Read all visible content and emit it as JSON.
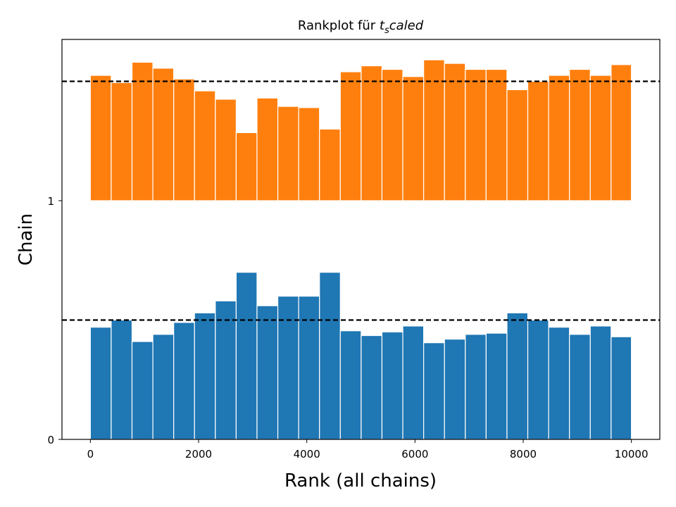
{
  "chart_data": {
    "type": "bar",
    "title": "Rankplot für ",
    "title_math": "t",
    "title_math_sub": "s",
    "title_math_rest": "caled",
    "xlabel": "Rank (all chains)",
    "ylabel": "Chain",
    "xlim": [
      -525,
      10525
    ],
    "xticks": [
      0,
      2000,
      4000,
      6000,
      8000,
      10000
    ],
    "xtick_labels": [
      "0",
      "2000",
      "4000",
      "6000",
      "8000",
      "10000"
    ],
    "yticks": [
      0,
      1
    ],
    "ytick_labels": [
      "0",
      "1"
    ],
    "bin_edges": [
      0,
      385,
      770,
      1155,
      1540,
      1925,
      2310,
      2695,
      3080,
      3465,
      3850,
      4235,
      4620,
      5005,
      5390,
      5775,
      6160,
      6545,
      6930,
      7315,
      7700,
      8085,
      8470,
      8855,
      9240,
      9625,
      10000
    ],
    "series": [
      {
        "chain": 0,
        "color": "#1f77b4",
        "counts": [
          0.47,
          0.5,
          0.41,
          0.44,
          0.49,
          0.53,
          0.58,
          0.7,
          0.56,
          0.6,
          0.6,
          0.7,
          0.455,
          0.435,
          0.45,
          0.475,
          0.405,
          0.42,
          0.44,
          0.445,
          0.53,
          0.5,
          0.47,
          0.44,
          0.475,
          0.43
        ]
      },
      {
        "chain": 1,
        "color": "#ff7f0e",
        "counts": [
          1.525,
          1.495,
          1.58,
          1.555,
          1.51,
          1.46,
          1.425,
          1.285,
          1.43,
          1.395,
          1.39,
          1.3,
          1.54,
          1.565,
          1.55,
          1.52,
          1.59,
          1.575,
          1.55,
          1.55,
          1.465,
          1.5,
          1.525,
          1.55,
          1.525,
          1.57
        ]
      }
    ],
    "reference_lines": [
      0.5,
      1.5
    ],
    "reference_line_style": "dashed",
    "reference_line_color": "#000000",
    "grid": false,
    "legend": "none"
  }
}
